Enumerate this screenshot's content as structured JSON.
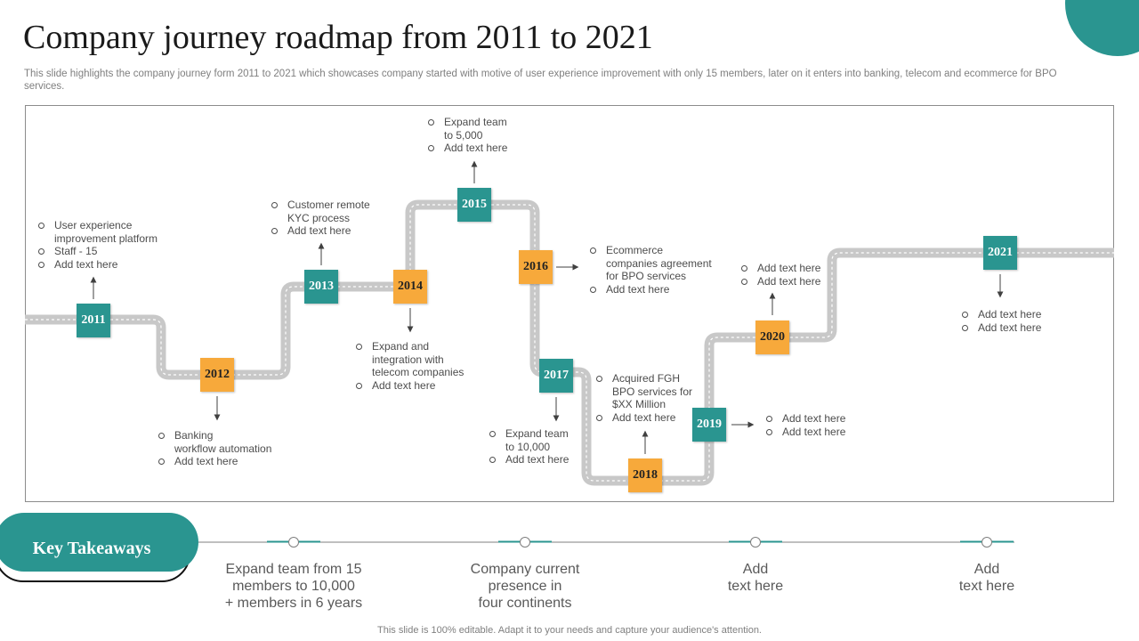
{
  "title": "Company journey roadmap from 2011 to 2021",
  "subtitle": "This slide highlights the company journey form 2011 to 2021 which showcases company started with motive of user experience improvement with only 15 members, later on it enters into banking, telecom and ecommerce for BPO services.",
  "milestones": [
    {
      "year": "2011",
      "color": "teal",
      "notes": [
        "User experience\nimprovement platform",
        "Staff - 15",
        "Add text here"
      ]
    },
    {
      "year": "2012",
      "color": "orange",
      "notes": [
        "Banking\nworkflow automation",
        "Add text here"
      ]
    },
    {
      "year": "2013",
      "color": "teal",
      "notes": [
        "Customer remote\nKYC process",
        "Add text here"
      ]
    },
    {
      "year": "2014",
      "color": "orange",
      "notes": [
        "Expand and\nintegration with\ntelecom companies",
        "Add text here"
      ]
    },
    {
      "year": "2015",
      "color": "teal",
      "notes": [
        "Expand team\nto 5,000",
        "Add text here"
      ]
    },
    {
      "year": "2016",
      "color": "orange",
      "notes": [
        "Ecommerce\ncompanies agreement\nfor BPO services",
        "Add text here"
      ]
    },
    {
      "year": "2017",
      "color": "teal",
      "notes": [
        "Expand team\nto 10,000",
        "Add text here"
      ]
    },
    {
      "year": "2018",
      "color": "orange",
      "notes": [
        "Acquired FGH\nBPO services for\n$XX Million",
        "Add text here"
      ]
    },
    {
      "year": "2019",
      "color": "teal",
      "notes": [
        "Add text here",
        "Add text here"
      ]
    },
    {
      "year": "2020",
      "color": "orange",
      "notes": [
        "Add text here",
        "Add text here"
      ]
    },
    {
      "year": "2021",
      "color": "teal",
      "notes": [
        "Add text here",
        "Add text here"
      ]
    }
  ],
  "key_takeaways": {
    "label": "Key Takeaways",
    "items": [
      "Expand team from 15\nmembers to 10,000\n+ members in 6 years",
      "Company current\npresence in\nfour continents",
      "Add\ntext here",
      "Add\ntext here"
    ]
  },
  "footer": "This slide is 100% editable. Adapt it to your needs and capture your audience's attention.",
  "colors": {
    "teal": "#2a9590",
    "orange": "#f7a93b",
    "road": "#c8c8c8"
  }
}
